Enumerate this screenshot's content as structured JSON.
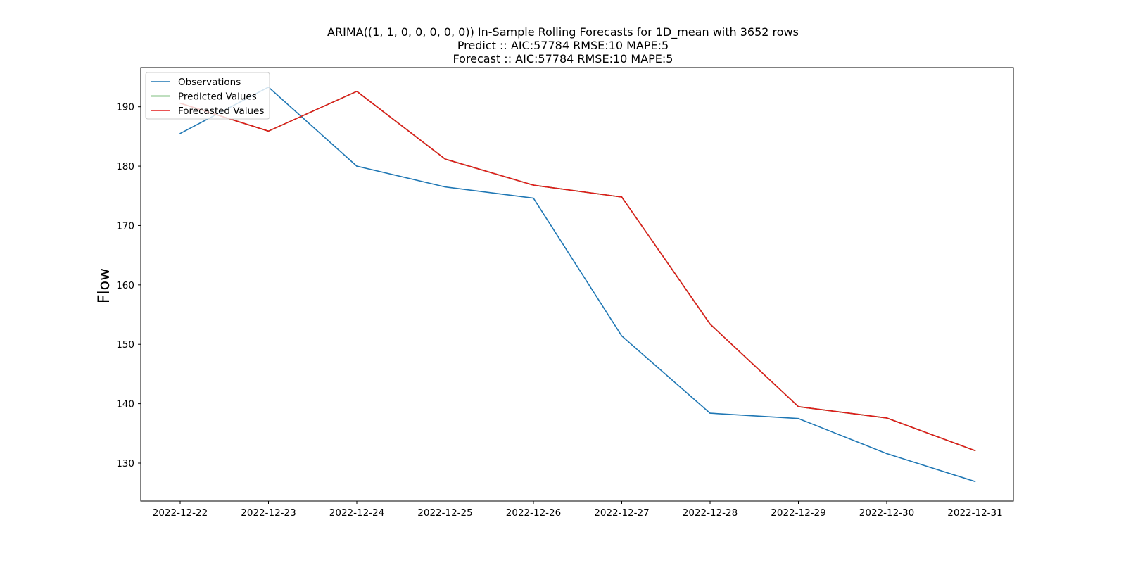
{
  "chart_data": {
    "type": "line",
    "title_lines": [
      "ARIMA((1, 1, 0, 0, 0, 0, 0)) In-Sample Rolling Forecasts for 1D_mean with 3652 rows",
      "Predict :: AIC:57784 RMSE:10 MAPE:5",
      "Forecast :: AIC:57784 RMSE:10 MAPE:5"
    ],
    "xlabel": "",
    "ylabel": "Flow",
    "x": [
      "2022-12-22",
      "2022-12-23",
      "2022-12-24",
      "2022-12-25",
      "2022-12-26",
      "2022-12-27",
      "2022-12-28",
      "2022-12-29",
      "2022-12-30",
      "2022-12-31"
    ],
    "yticks": [
      130,
      140,
      150,
      160,
      170,
      180,
      190
    ],
    "ylim": [
      123.6,
      196.6
    ],
    "grid": false,
    "legend_position": "upper-left",
    "series": [
      {
        "name": "Observations",
        "color": "#1f77b4",
        "values": [
          185.5,
          193.3,
          180.0,
          176.5,
          174.6,
          151.4,
          138.4,
          137.5,
          131.6,
          126.9
        ]
      },
      {
        "name": "Predicted Values",
        "color": "#008000",
        "values": [
          190.6,
          185.9,
          192.6,
          181.2,
          176.8,
          174.8,
          153.4,
          139.5,
          137.6,
          132.1
        ]
      },
      {
        "name": "Forecasted Values",
        "color": "#e31a1c",
        "values": [
          190.6,
          185.9,
          192.6,
          181.2,
          176.8,
          174.8,
          153.4,
          139.5,
          137.6,
          132.1
        ]
      }
    ]
  }
}
